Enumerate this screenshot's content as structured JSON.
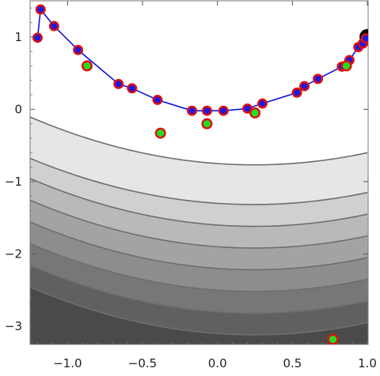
{
  "chart_data": {
    "type": "scatter",
    "title": "",
    "xlabel": "",
    "ylabel": "",
    "xlim": [
      -1.25,
      1.005
    ],
    "ylim": [
      -3.25,
      1.5
    ],
    "x_ticks": [
      -1.0,
      -0.5,
      0.0,
      0.5,
      1.0
    ],
    "x_tick_labels": [
      "−1.0",
      "−0.5",
      "0.0",
      "0.5",
      "1.0"
    ],
    "y_ticks": [
      -3,
      -2,
      -1,
      0,
      1
    ],
    "y_tick_labels": [
      "−3",
      "−2",
      "−1",
      "0",
      "1"
    ],
    "grid": false,
    "legend": "none",
    "contour_background": {
      "function": "parabolic valley (Rosenbrock-like), lighter near the curve y = x^2",
      "levels_y_at_x0": [
        -0.75,
        -1.3,
        -1.6,
        -1.9,
        -2.2,
        -2.5,
        -2.8,
        -3.1
      ],
      "levels_y_at_x_neg1_2": [
        -0.15,
        -0.72,
        -1.0,
        -1.3,
        -1.6,
        -1.9,
        -2.2,
        -2.5
      ],
      "levels_y_at_x1": [
        -0.6,
        -1.15,
        -1.45,
        -1.75,
        -2.05,
        -2.35,
        -2.65,
        -2.95
      ],
      "colors": {
        "line": "#6e6e6e",
        "light": "#e6e6e6",
        "dark": "#4a4a4a"
      }
    },
    "series": [
      {
        "name": "",
        "kind": "path",
        "style": "blue line with blue dots ringed in red",
        "colors": {
          "line": "#1010e0",
          "dot": "#1a1ae0",
          "ring": "#e01010"
        },
        "points": [
          [
            -1.2,
            0.99
          ],
          [
            -1.18,
            1.38
          ],
          [
            -1.09,
            1.15
          ],
          [
            -0.93,
            0.82
          ],
          [
            -0.66,
            0.35
          ],
          [
            -0.57,
            0.29
          ],
          [
            -0.4,
            0.13
          ],
          [
            -0.17,
            -0.02
          ],
          [
            -0.07,
            -0.02
          ],
          [
            0.04,
            -0.02
          ],
          [
            0.2,
            0.01
          ],
          [
            0.3,
            0.08
          ],
          [
            0.53,
            0.23
          ],
          [
            0.58,
            0.32
          ],
          [
            0.67,
            0.42
          ],
          [
            0.83,
            0.59
          ],
          [
            0.88,
            0.68
          ],
          [
            0.94,
            0.86
          ],
          [
            0.97,
            0.91
          ],
          [
            0.99,
            0.98
          ]
        ]
      },
      {
        "name": "",
        "kind": "markers",
        "style": "green dots ringed in red",
        "colors": {
          "dot": "#22dd22",
          "ring": "#e01010"
        },
        "points": [
          [
            -0.87,
            0.6
          ],
          [
            -0.38,
            -0.33
          ],
          [
            -0.07,
            -0.2
          ],
          [
            0.25,
            -0.05
          ],
          [
            0.86,
            0.6
          ],
          [
            0.77,
            -3.18
          ]
        ]
      },
      {
        "name": "",
        "kind": "markers",
        "style": "large black circle (optimum)",
        "colors": {
          "dot": "#000000"
        },
        "points": [
          [
            1.0,
            1.0
          ]
        ]
      }
    ]
  }
}
